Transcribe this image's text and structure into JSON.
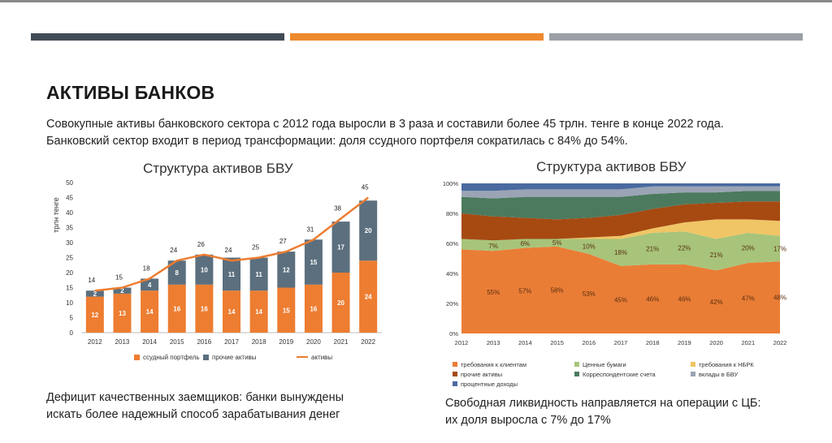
{
  "colors": {
    "band_dark": "#414b55",
    "band_orange": "#ee8a2e",
    "band_gray": "#9aa0a6",
    "loan": "#ed7d31",
    "other": "#5b6f7e",
    "assets_line": "#ed7d31"
  },
  "page": {
    "title": "АКТИВЫ БАНКОВ",
    "lead_1": "Совокупные активы банковского сектора с 2012 года выросли в 3 раза и составили более 45 трлн. тенге в конце 2022 года.",
    "lead_2": "Банковский сектор входит в период трансформации: доля ссудного портфеля сократилась с 84% до 54%.",
    "note_left_1": "Дефицит качественных заемщиков: банки вынуждены",
    "note_left_2": "искать более надежный способ зарабатывания денег",
    "note_right_1": "Свободная ликвидность направляется на операции с ЦБ:",
    "note_right_2": "их доля выросла с 7% до 17%"
  },
  "chart_data": [
    {
      "type": "bar",
      "stacked": true,
      "title": "Структура активов БВУ",
      "ylabel": "трлн тенге",
      "ylim": [
        0,
        50
      ],
      "yticks": [
        "0",
        "5",
        "10",
        "15",
        "20",
        "25",
        "30",
        "35",
        "40",
        "45",
        "50"
      ],
      "categories": [
        "2012",
        "2013",
        "2014",
        "2015",
        "2016",
        "2017",
        "2018",
        "2019",
        "2020",
        "2021",
        "2022"
      ],
      "series": [
        {
          "name": "ссудный портфель",
          "color": "#ed7d31",
          "values": [
            12,
            13,
            14,
            16,
            16,
            14,
            14,
            15,
            16,
            20,
            24
          ],
          "labels": [
            "12",
            "13",
            "14",
            "16",
            "16",
            "14",
            "14",
            "15",
            "16",
            "20",
            "24"
          ]
        },
        {
          "name": "прочие активы",
          "color": "#5b6f7e",
          "values": [
            2,
            2,
            4,
            8,
            10,
            11,
            11,
            12,
            15,
            17,
            20
          ],
          "labels": [
            "2",
            "2",
            "4",
            "8",
            "10",
            "11",
            "11",
            "12",
            "15",
            "17",
            "20"
          ]
        }
      ],
      "line": {
        "name": "активы",
        "color": "#ed7d31",
        "values": [
          14,
          15,
          18,
          24,
          26,
          24,
          25,
          27,
          31,
          38,
          45
        ],
        "labels": [
          "14",
          "15",
          "18",
          "24",
          "26",
          "24",
          "25",
          "27",
          "31",
          "38",
          "45"
        ]
      },
      "legend": "bottom",
      "grid": false
    },
    {
      "type": "area",
      "stacked": true,
      "percent": true,
      "title": "Структура активов БВУ",
      "ylim": [
        0,
        100
      ],
      "yticks": [
        "0%",
        "20%",
        "40%",
        "60%",
        "80%",
        "100%"
      ],
      "categories": [
        "2012",
        "2013",
        "2014",
        "2015",
        "2016",
        "2017",
        "2018",
        "2019",
        "2020",
        "2021",
        "2022"
      ],
      "series": [
        {
          "name": "требования к клиентам",
          "color": "#ea7d36",
          "values": [
            56,
            55,
            57,
            58,
            53,
            45,
            46,
            46,
            42,
            47,
            48
          ],
          "labels": [
            "",
            "55%",
            "57%",
            "58%",
            "53%",
            "45%",
            "46%",
            "46%",
            "42%",
            "47%",
            "48%"
          ]
        },
        {
          "name": "Ценные бумаги",
          "color": "#a7c47a",
          "values": [
            7,
            7,
            6,
            5,
            10,
            18,
            21,
            22,
            21,
            20,
            17
          ],
          "labels": [
            "",
            "7%",
            "6%",
            "5%",
            "10%",
            "18%",
            "21%",
            "22%",
            "21%",
            "20%",
            "17%"
          ]
        },
        {
          "name": "требования к НБРК",
          "color": "#f0c565",
          "values": [
            0,
            0,
            0,
            0,
            1,
            2,
            3,
            6,
            13,
            9,
            10
          ],
          "labels": []
        },
        {
          "name": "прочие активы",
          "color": "#a64a12",
          "values": [
            17,
            16,
            14,
            13,
            13,
            14,
            13,
            12,
            11,
            12,
            13
          ],
          "labels": []
        },
        {
          "name": "Корреспондентские счета",
          "color": "#4c7a5e",
          "values": [
            11,
            12,
            14,
            15,
            14,
            12,
            10,
            8,
            7,
            7,
            7
          ],
          "labels": []
        },
        {
          "name": "вклады в БВУ",
          "color": "#9aa4b4",
          "values": [
            4,
            5,
            5,
            5,
            5,
            5,
            5,
            4,
            4,
            3,
            3
          ],
          "labels": []
        },
        {
          "name": "процентные доходы",
          "color": "#4a6aa0",
          "values": [
            5,
            5,
            4,
            4,
            4,
            4,
            2,
            2,
            2,
            2,
            2
          ],
          "labels": []
        }
      ],
      "legend": "bottom",
      "grid": false
    }
  ]
}
